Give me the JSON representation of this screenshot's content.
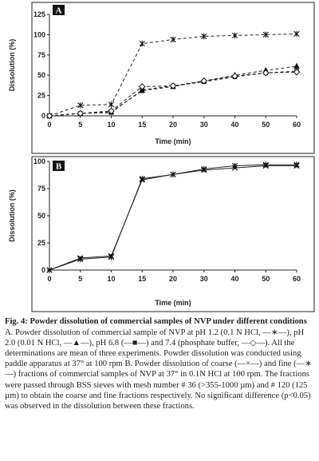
{
  "chart_data": [
    {
      "type": "line",
      "panel_label": "A",
      "xlabel": "Time (min)",
      "ylabel": "Dissolution (%)",
      "x": [
        0,
        5,
        10,
        15,
        20,
        30,
        40,
        50,
        60
      ],
      "ylim": [
        0,
        125
      ],
      "yticks": [
        0,
        25,
        50,
        75,
        100,
        125
      ],
      "grid": false,
      "series": [
        {
          "name": "pH 1.2 (0.1 N HCl)",
          "marker": "star",
          "values": [
            0,
            13,
            14,
            89,
            94,
            98,
            99,
            100,
            101
          ]
        },
        {
          "name": "pH 2.0 (0.01 N HCl)",
          "marker": "triangle",
          "values": [
            0,
            3,
            5,
            31,
            36,
            43,
            50,
            56,
            61
          ]
        },
        {
          "name": "pH 6.8",
          "marker": "square",
          "values": [
            0,
            3,
            4,
            32,
            37,
            42,
            48,
            53,
            55
          ]
        },
        {
          "name": "7.4 (phosphate buffer)",
          "marker": "diamond",
          "values": [
            0,
            3,
            6,
            36,
            37,
            43,
            49,
            53,
            54
          ]
        }
      ]
    },
    {
      "type": "line",
      "panel_label": "B",
      "xlabel": "Time (min)",
      "ylabel": "Dissolution (%)",
      "x": [
        0,
        5,
        10,
        15,
        20,
        30,
        40,
        50,
        60
      ],
      "ylim": [
        0,
        100
      ],
      "yticks": [
        0,
        25,
        50,
        75,
        100
      ],
      "grid": false,
      "series": [
        {
          "name": "coarse",
          "marker": "cross",
          "values": [
            0,
            11,
            13,
            83,
            88,
            92,
            94,
            96,
            96
          ]
        },
        {
          "name": "fine",
          "marker": "star",
          "values": [
            0,
            10,
            12,
            84,
            88,
            93,
            96,
            97,
            97
          ]
        }
      ]
    }
  ],
  "caption": {
    "title": "Fig. 4: Powder dissolution of commercial samples of NVP under different conditions",
    "body": "A. Powder dissolution of commercial sample of NVP at pH 1.2 (0.1 N HCl, —∗—), pH 2.0 (0.01 N HCl, —▲—), pH 6.8 (—■—) and 7.4 (phosphate buffer, —◇—). All the determinations are mean of three experiments. Powder dissolution was conducted using paddle apparatus at 37° at 100 rpm B. Powder dissolution of coarse (—×—) and fine (—∗—) fractions of commercial samples of NVP at 37° in 0.1N HCl at 100 rpm. The fractions were passed through BSS sieves with mesh number # 36 (>355-1000 µm) and # 120 (125 µm) to obtain the coarse and fine fractions respectively. No significant difference (p<0.05) was observed in the dissolution between these fractions."
  }
}
